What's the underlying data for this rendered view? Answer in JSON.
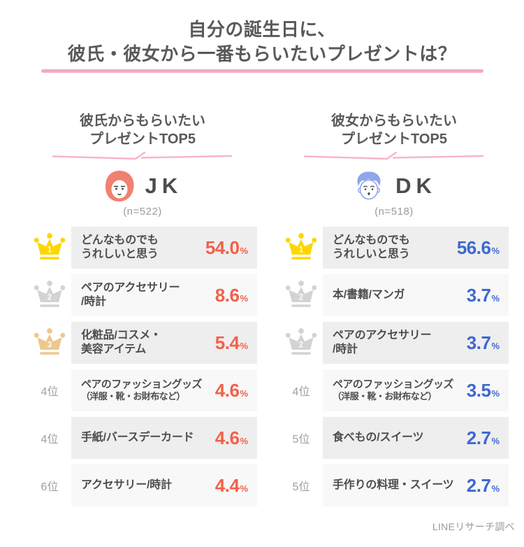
{
  "title": {
    "line1": "自分の誕生日に、",
    "line2": "彼氏・彼女から一番もらいたいプレゼントは？"
  },
  "source": "LINEリサーチ調べ",
  "colors": {
    "title_text": "#595959",
    "title_underline_pink": "#f7a8c1",
    "header_squiggle_pink": "#f8b4c9",
    "row_bg_dark": "#eeeeee",
    "row_bg_light": "#f8f8f8",
    "label_text": "#4d4d4d",
    "rank_label_gray": "#9e9e9e",
    "jk_percent_accent": "#f4604a",
    "dk_percent_accent": "#3e68d2",
    "jk_avatar_color": "#f0816f",
    "dk_avatar_color": "#8fa7e9",
    "crown": {
      "gold": "#fdd600",
      "silver": "#d3d3d3",
      "bronze": "#edc88d"
    }
  },
  "columns": [
    {
      "id": "boyfriend",
      "header_line1": "彼氏からもらいたい",
      "header_line2": "プレゼントTOP5",
      "group_label": "JK",
      "sample": "(n=522)",
      "accent": "#f4604a",
      "rows": [
        {
          "rank_type": "crown",
          "rank": "1",
          "tier": "gold",
          "lines": [
            "どんなものでも",
            "うれしいと思う"
          ],
          "value": "54.0",
          "unit": "%"
        },
        {
          "rank_type": "crown",
          "rank": "2",
          "tier": "silver",
          "lines": [
            "ペアのアクセサリー",
            "/時計"
          ],
          "value": "8.6",
          "unit": "%"
        },
        {
          "rank_type": "crown",
          "rank": "3",
          "tier": "bronze",
          "lines": [
            "化粧品/コスメ・",
            "美容アイテム"
          ],
          "value": "5.4",
          "unit": "%"
        },
        {
          "rank_type": "text",
          "rank_label": "4位",
          "lines": [
            "ペアのファッショングッズ"
          ],
          "note": "（洋服・靴・お財布など）",
          "value": "4.6",
          "unit": "%"
        },
        {
          "rank_type": "text",
          "rank_label": "4位",
          "lines": [
            "手紙/バースデーカード"
          ],
          "value": "4.6",
          "unit": "%"
        },
        {
          "rank_type": "text",
          "rank_label": "6位",
          "lines": [
            "アクセサリー/時計"
          ],
          "value": "4.4",
          "unit": "%"
        }
      ]
    },
    {
      "id": "girlfriend",
      "header_line1": "彼女からもらいたい",
      "header_line2": "プレゼントTOP5",
      "group_label": "DK",
      "sample": "(n=518)",
      "accent": "#3e68d2",
      "rows": [
        {
          "rank_type": "crown",
          "rank": "1",
          "tier": "gold",
          "lines": [
            "どんなものでも",
            "うれしいと思う"
          ],
          "value": "56.6",
          "unit": "%"
        },
        {
          "rank_type": "crown",
          "rank": "2",
          "tier": "silver",
          "lines": [
            "本/書籍/マンガ"
          ],
          "value": "3.7",
          "unit": "%"
        },
        {
          "rank_type": "crown",
          "rank": "2",
          "tier": "silver",
          "lines": [
            "ペアのアクセサリー",
            "/時計"
          ],
          "value": "3.7",
          "unit": "%"
        },
        {
          "rank_type": "text",
          "rank_label": "4位",
          "lines": [
            "ペアのファッショングッズ"
          ],
          "note": "（洋服・靴・お財布など）",
          "value": "3.5",
          "unit": "%"
        },
        {
          "rank_type": "text",
          "rank_label": "5位",
          "lines": [
            "食べもの/スイーツ"
          ],
          "value": "2.7",
          "unit": "%"
        },
        {
          "rank_type": "text",
          "rank_label": "5位",
          "lines": [
            "手作りの料理・スイーツ"
          ],
          "value": "2.7",
          "unit": "%"
        }
      ]
    }
  ],
  "chart_data": [
    {
      "type": "table",
      "title": "彼氏からもらいたいプレゼントTOP5",
      "group": "JK",
      "n": 522,
      "unit": "%",
      "categories": [
        "どんなものでもうれしいと思う",
        "ペアのアクセサリー/時計",
        "化粧品/コスメ・美容アイテム",
        "ペアのファッショングッズ（洋服・靴・お財布など）",
        "手紙/バースデーカード",
        "アクセサリー/時計"
      ],
      "values": [
        54.0,
        8.6,
        5.4,
        4.6,
        4.6,
        4.4
      ],
      "ranks": [
        1,
        2,
        3,
        4,
        4,
        6
      ]
    },
    {
      "type": "table",
      "title": "彼女からもらいたいプレゼントTOP5",
      "group": "DK",
      "n": 518,
      "unit": "%",
      "categories": [
        "どんなものでもうれしいと思う",
        "本/書籍/マンガ",
        "ペアのアクセサリー/時計",
        "ペアのファッショングッズ（洋服・靴・お財布など）",
        "食べもの/スイーツ",
        "手作りの料理・スイーツ"
      ],
      "values": [
        56.6,
        3.7,
        3.7,
        3.5,
        2.7,
        2.7
      ],
      "ranks": [
        1,
        2,
        2,
        4,
        5,
        5
      ]
    }
  ]
}
